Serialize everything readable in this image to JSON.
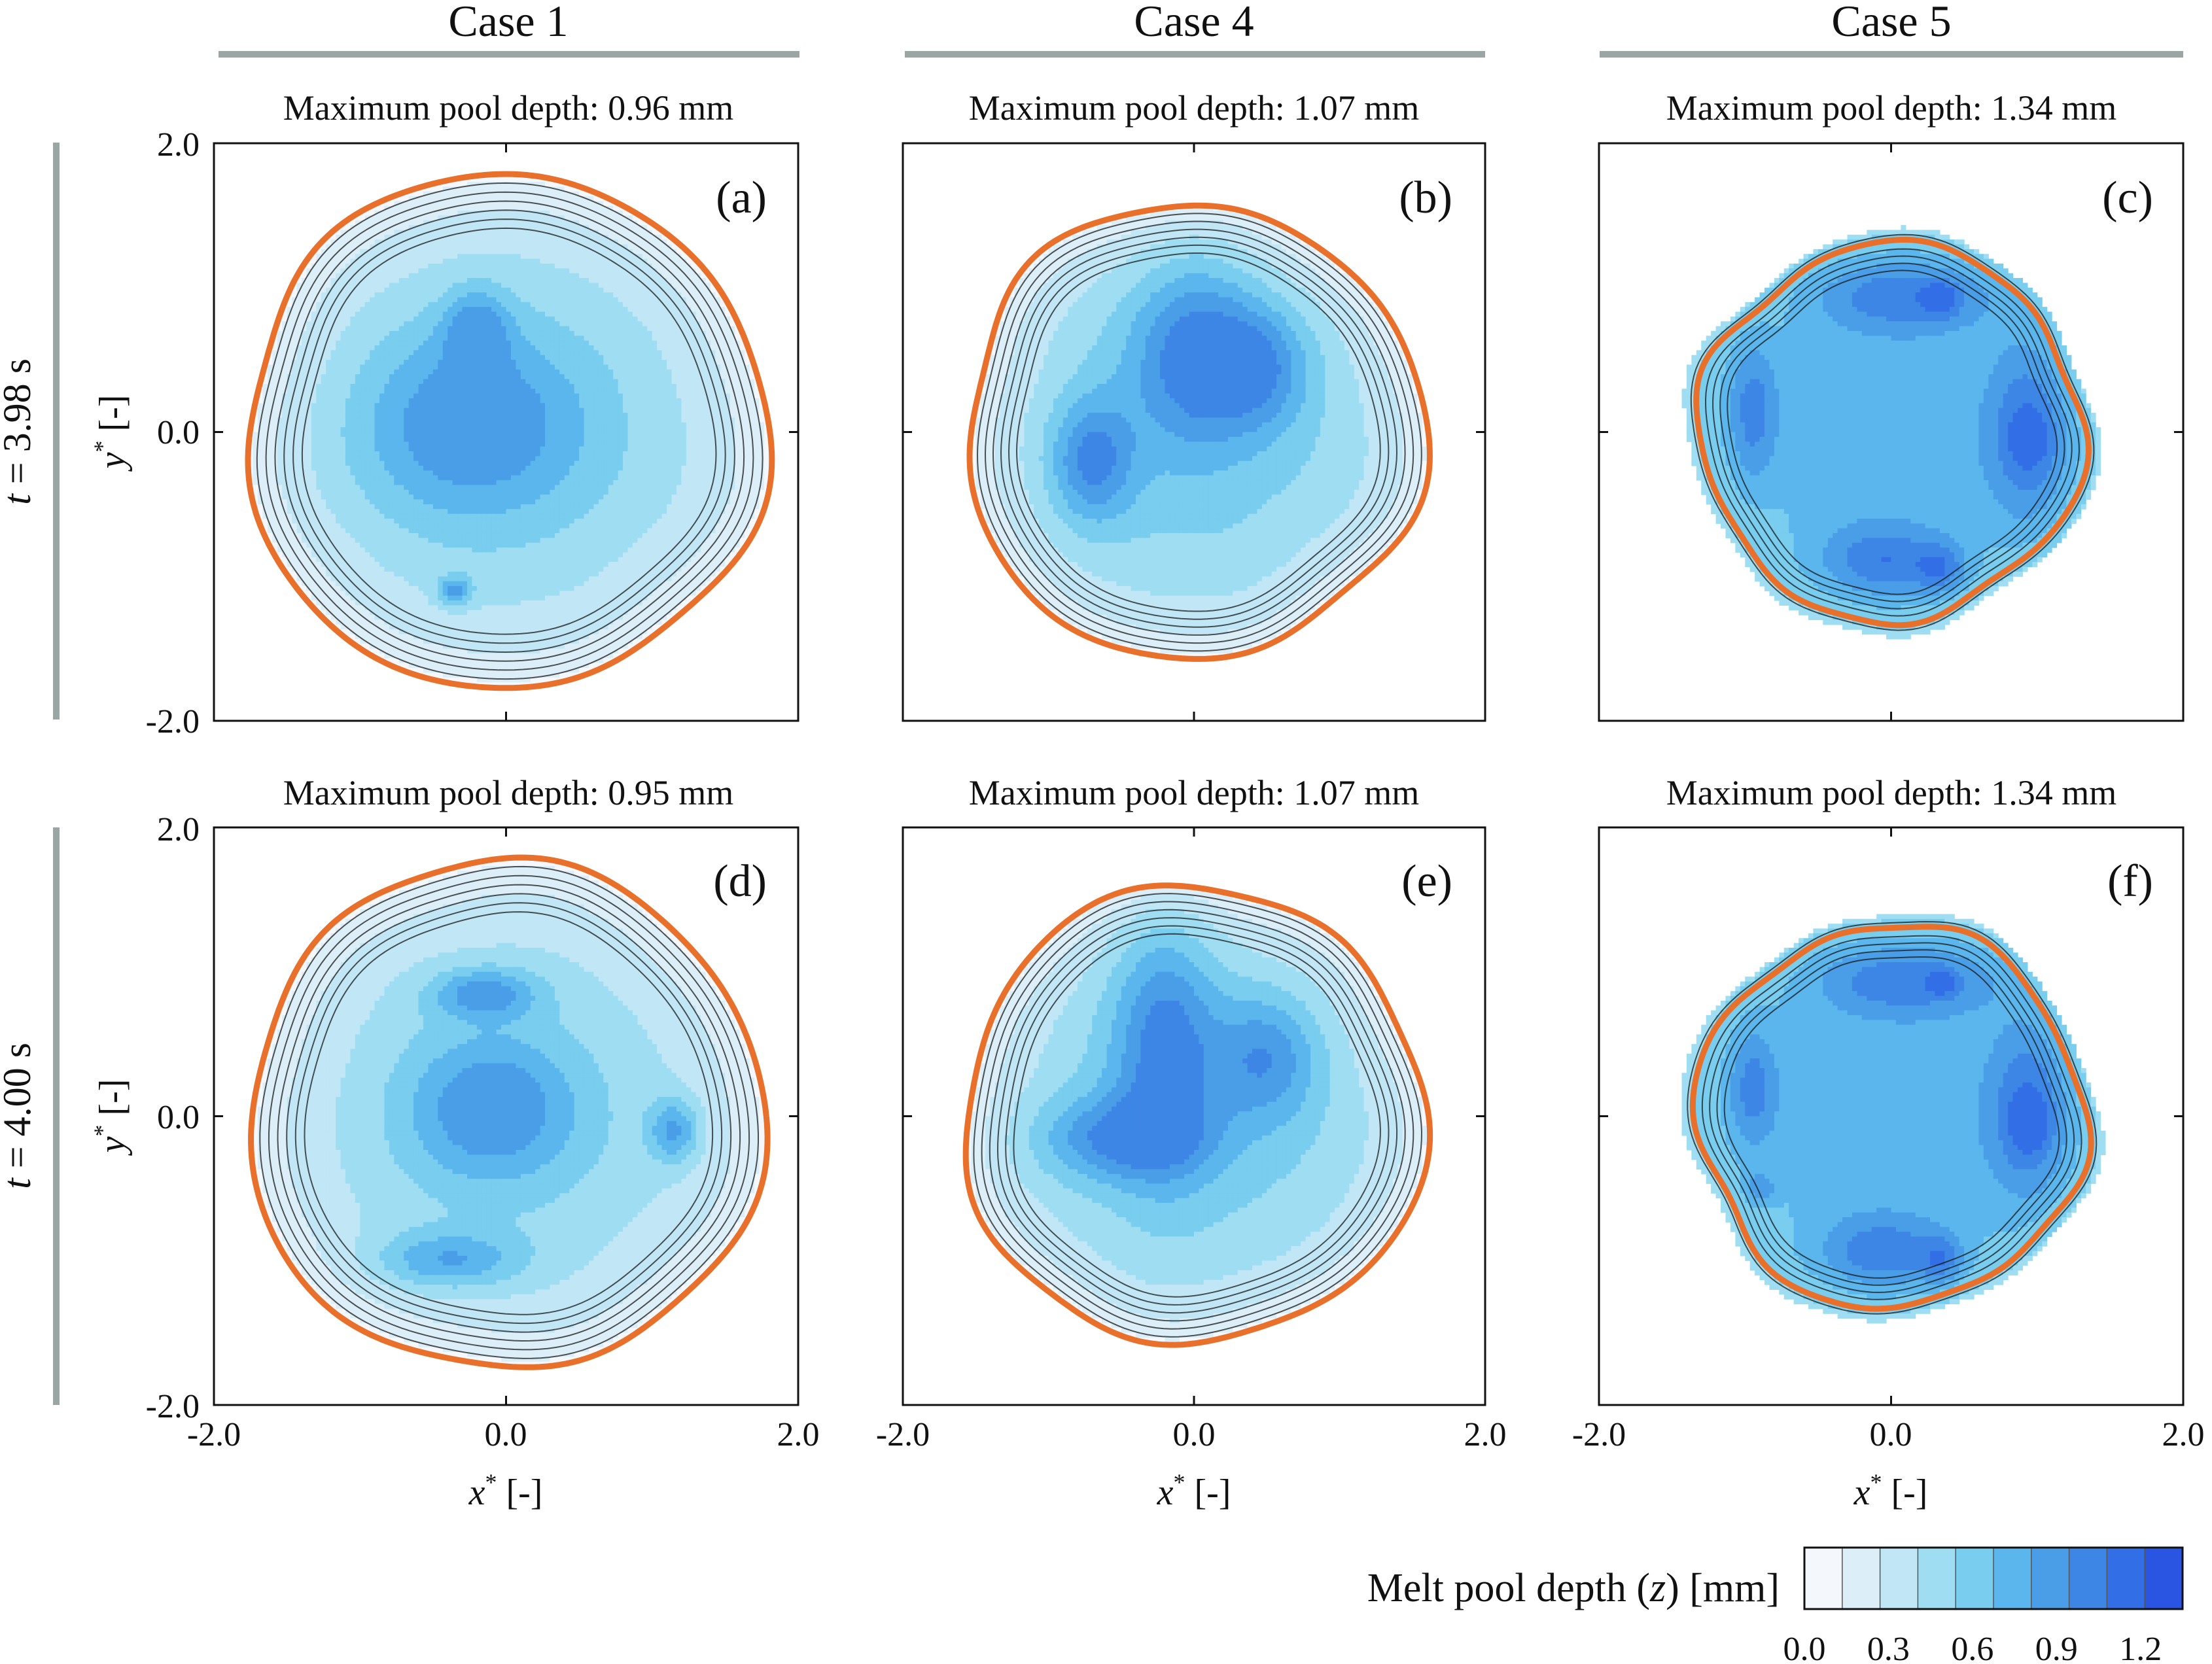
{
  "chart_data": {
    "type": "heatmap",
    "description_title": "Melt pool depth contour maps",
    "columns": [
      {
        "label": "Case 1"
      },
      {
        "label": "Case 4"
      },
      {
        "label": "Case 5"
      }
    ],
    "rows": [
      {
        "time_label": "t = 3.98 s",
        "t_italic": "t",
        "t_rest": " = 3.98 s"
      },
      {
        "time_label": "t = 4.00 s",
        "t_italic": "t",
        "t_rest": " = 4.00 s"
      }
    ],
    "axes": {
      "xlabel": "x* [-]",
      "ylabel": "y* [-]",
      "xlim": [
        -2.0,
        2.0
      ],
      "ylim": [
        -2.0,
        2.0
      ],
      "x_ticks": [
        "-2.0",
        "0.0",
        "2.0"
      ],
      "y_ticks": [
        "2.0",
        "0.0",
        "-2.0"
      ]
    },
    "panels": [
      {
        "letter": "(a)",
        "row": 0,
        "col": 0,
        "case": "Case 1",
        "time_s": 3.98,
        "max_depth_mm": 0.96,
        "title": "Maximum pool depth: 0.96 mm",
        "radius": 1.78,
        "shape_harmonics": [
          [
            3,
            0.018,
            0.5
          ],
          [
            5,
            0.012,
            1.3
          ],
          [
            7,
            0.008,
            2.1
          ]
        ],
        "edge_depth_mm": 0.04,
        "hotspots": [
          {
            "x": -0.25,
            "y": 0.05,
            "sx": 0.55,
            "sy": 0.45,
            "a": 0.5
          },
          {
            "x": -0.2,
            "y": 0.7,
            "sx": 0.15,
            "sy": 0.2,
            "a": 0.45
          },
          {
            "x": -0.35,
            "y": -1.1,
            "sx": 0.08,
            "sy": 0.07,
            "a": 0.5
          }
        ]
      },
      {
        "letter": "(b)",
        "row": 0,
        "col": 1,
        "case": "Case 4",
        "time_s": 3.98,
        "max_depth_mm": 1.07,
        "title": "Maximum pool depth: 1.07 mm",
        "radius": 1.57,
        "shape_harmonics": [
          [
            3,
            0.025,
            0.2
          ],
          [
            5,
            0.015,
            1.0
          ],
          [
            7,
            0.01,
            2.4
          ]
        ],
        "edge_depth_mm": 0.04,
        "hotspots": [
          {
            "x": 0.0,
            "y": 0.55,
            "sx": 0.3,
            "sy": 0.45,
            "a": 0.55
          },
          {
            "x": 0.45,
            "y": 0.45,
            "sx": 0.25,
            "sy": 0.3,
            "a": 0.45
          },
          {
            "x": -0.7,
            "y": -0.2,
            "sx": 0.2,
            "sy": 0.3,
            "a": 0.55
          }
        ]
      },
      {
        "letter": "(c)",
        "row": 0,
        "col": 2,
        "case": "Case 5",
        "time_s": 3.98,
        "max_depth_mm": 1.34,
        "title": "Maximum pool depth: 1.34 mm",
        "radius": 1.38,
        "shape_harmonics": [
          [
            4,
            0.035,
            0.8
          ],
          [
            6,
            0.015,
            1.7
          ],
          [
            9,
            0.01,
            0.3
          ]
        ],
        "edge_depth_mm": 0.5,
        "hotspots": [
          {
            "x": 0.1,
            "y": 0.95,
            "sx": 0.45,
            "sy": 0.18,
            "a": 0.45
          },
          {
            "x": 0.35,
            "y": 0.92,
            "sx": 0.08,
            "sy": 0.08,
            "a": 0.3
          },
          {
            "x": 0.95,
            "y": 0.0,
            "sx": 0.2,
            "sy": 0.45,
            "a": 0.5
          },
          {
            "x": 0.95,
            "y": -0.05,
            "sx": 0.08,
            "sy": 0.1,
            "a": 0.3
          },
          {
            "x": -0.05,
            "y": -0.9,
            "sx": 0.3,
            "sy": 0.18,
            "a": 0.45
          },
          {
            "x": 0.35,
            "y": -0.95,
            "sx": 0.12,
            "sy": 0.12,
            "a": 0.35
          },
          {
            "x": -0.95,
            "y": 0.15,
            "sx": 0.12,
            "sy": 0.35,
            "a": 0.4
          }
        ]
      },
      {
        "letter": "(d)",
        "row": 1,
        "col": 0,
        "case": "Case 1",
        "time_s": 4.0,
        "max_depth_mm": 0.95,
        "title": "Maximum pool depth: 0.95 mm",
        "radius": 1.76,
        "shape_harmonics": [
          [
            3,
            0.018,
            1.1
          ],
          [
            5,
            0.012,
            0.4
          ],
          [
            7,
            0.008,
            2.6
          ]
        ],
        "edge_depth_mm": 0.04,
        "hotspots": [
          {
            "x": -0.1,
            "y": 0.05,
            "sx": 0.4,
            "sy": 0.35,
            "a": 0.5
          },
          {
            "x": -0.15,
            "y": 0.85,
            "sx": 0.25,
            "sy": 0.12,
            "a": 0.5
          },
          {
            "x": 1.15,
            "y": -0.1,
            "sx": 0.12,
            "sy": 0.15,
            "a": 0.5
          },
          {
            "x": -0.4,
            "y": -1.0,
            "sx": 0.35,
            "sy": 0.14,
            "a": 0.45
          }
        ]
      },
      {
        "letter": "(e)",
        "row": 1,
        "col": 1,
        "case": "Case 4",
        "time_s": 4.0,
        "max_depth_mm": 1.07,
        "title": "Maximum pool depth: 1.07 mm",
        "radius": 1.58,
        "shape_harmonics": [
          [
            3,
            0.022,
            0.9
          ],
          [
            5,
            0.015,
            1.8
          ],
          [
            7,
            0.01,
            0.1
          ]
        ],
        "edge_depth_mm": 0.04,
        "hotspots": [
          {
            "x": -0.2,
            "y": 0.5,
            "sx": 0.25,
            "sy": 0.6,
            "a": 0.55
          },
          {
            "x": 0.5,
            "y": 0.4,
            "sx": 0.25,
            "sy": 0.3,
            "a": 0.45
          },
          {
            "x": -0.5,
            "y": -0.15,
            "sx": 0.4,
            "sy": 0.2,
            "a": 0.5
          }
        ]
      },
      {
        "letter": "(f)",
        "row": 1,
        "col": 2,
        "case": "Case 5",
        "time_s": 4.0,
        "max_depth_mm": 1.34,
        "title": "Maximum pool depth: 1.34 mm",
        "radius": 1.4,
        "shape_harmonics": [
          [
            4,
            0.035,
            1.2
          ],
          [
            6,
            0.015,
            0.6
          ],
          [
            9,
            0.01,
            2.0
          ]
        ],
        "edge_depth_mm": 0.5,
        "hotspots": [
          {
            "x": 0.1,
            "y": 0.95,
            "sx": 0.45,
            "sy": 0.18,
            "a": 0.45
          },
          {
            "x": 0.35,
            "y": 0.92,
            "sx": 0.06,
            "sy": 0.06,
            "a": 0.3
          },
          {
            "x": 0.95,
            "y": 0.05,
            "sx": 0.2,
            "sy": 0.45,
            "a": 0.5
          },
          {
            "x": 0.95,
            "y": -0.05,
            "sx": 0.08,
            "sy": 0.12,
            "a": 0.3
          },
          {
            "x": -0.05,
            "y": -0.95,
            "sx": 0.3,
            "sy": 0.18,
            "a": 0.45
          },
          {
            "x": 0.35,
            "y": -1.0,
            "sx": 0.1,
            "sy": 0.12,
            "a": 0.35
          },
          {
            "x": -0.95,
            "y": 0.2,
            "sx": 0.12,
            "sy": 0.3,
            "a": 0.4
          },
          {
            "x": -0.9,
            "y": -0.5,
            "sx": 0.08,
            "sy": 0.08,
            "a": 0.3
          }
        ]
      }
    ],
    "levels_mm": [
      0.0,
      0.15,
      0.3,
      0.45,
      0.6,
      0.75,
      0.9,
      1.05,
      1.2,
      1.35
    ],
    "colorbar": {
      "label_prefix": "Melt pool depth (",
      "label_var": "z",
      "label_suffix": ") [mm]",
      "ticks": [
        "0.0",
        "0.3",
        "0.6",
        "0.9",
        "1.2"
      ],
      "tick_values": [
        0.0,
        0.3,
        0.6,
        0.9,
        1.2
      ],
      "range": [
        0.0,
        1.35
      ],
      "colors": [
        "#f4f8fd",
        "#dceff9",
        "#c1e7f6",
        "#9fdef2",
        "#79cdef",
        "#5ab6ec",
        "#4a9ee8",
        "#3d86e6",
        "#326ee5",
        "#2a55e2"
      ]
    },
    "outline_color": "#e8702a",
    "separator_color": "#9aa6a3"
  }
}
